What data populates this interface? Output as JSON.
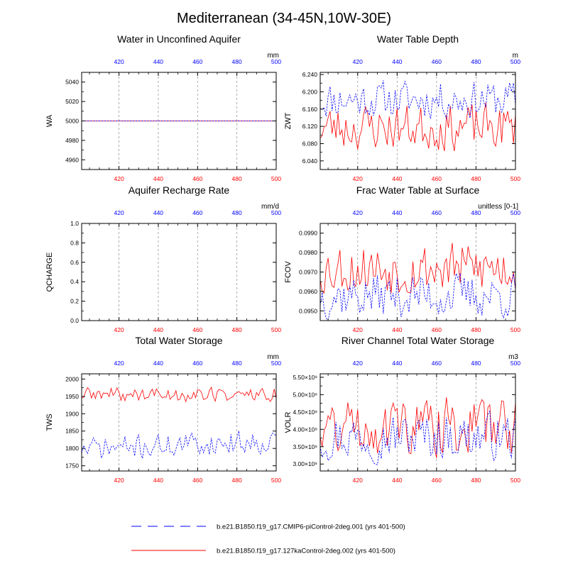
{
  "title": "Mediterranean (34-45N,10W-30E)",
  "colors": {
    "case1": "#0000ff",
    "case2": "#ff0000",
    "grid": "#999999"
  },
  "legend": [
    {
      "label": "b.e21.B1850.f19_g17.CMIP6-piControl-2deg.001 (yrs 401-500)",
      "color": "#0000ff",
      "style": "dashed"
    },
    {
      "label": "b.e21.B1850.f19_g17.127kaControl-2deg.002 (yrs 401-500)",
      "color": "#ff0000",
      "style": "solid"
    }
  ],
  "chart_data": [
    {
      "type": "line",
      "title": "Water in Unconfined Aquifer",
      "ylabel": "WA",
      "units": "mm",
      "xlim": [
        401,
        500
      ],
      "ylim": [
        4950,
        5050
      ],
      "xticks": [
        420,
        440,
        460,
        480,
        500
      ],
      "yticks": [
        4960,
        4980,
        5000,
        5020,
        5040
      ],
      "ytick_labels": [
        "4960",
        "4980",
        "5000",
        "5020",
        "5040"
      ],
      "series": [
        {
          "name": "case1",
          "gen": {
            "kind": "const",
            "base": 5000
          }
        },
        {
          "name": "case2",
          "gen": {
            "kind": "const",
            "base": 5000
          }
        }
      ]
    },
    {
      "type": "line",
      "title": "Water Table Depth",
      "ylabel": "ZWT",
      "units": "m",
      "xlim": [
        401,
        500
      ],
      "ylim": [
        6.02,
        6.245
      ],
      "xticks": [
        420,
        440,
        460,
        480,
        500
      ],
      "yticks": [
        6.04,
        6.08,
        6.12,
        6.16,
        6.2,
        6.24
      ],
      "ytick_labels": [
        "6.040",
        "6.080",
        "6.120",
        "6.160",
        "6.200",
        "6.240"
      ],
      "series": [
        {
          "name": "case1",
          "gen": {
            "kind": "noise",
            "base": 6.182,
            "amp": 0.045,
            "seed": 11,
            "min": 6.09,
            "max": 6.235
          }
        },
        {
          "name": "case2",
          "gen": {
            "kind": "noise",
            "base": 6.118,
            "amp": 0.055,
            "seed": 23,
            "min": 6.028,
            "max": 6.215
          }
        }
      ]
    },
    {
      "type": "line",
      "title": "Aquifer Recharge Rate",
      "ylabel": "QCHARGE",
      "units": "mm/d",
      "xlim": [
        401,
        500
      ],
      "ylim": [
        0,
        1
      ],
      "xticks": [
        420,
        440,
        460,
        480,
        500
      ],
      "yticks": [
        0,
        0.2,
        0.4,
        0.6,
        0.8,
        1.0
      ],
      "ytick_labels": [
        "0.0",
        "0.2",
        "0.4",
        "0.6",
        "0.8",
        "1.0"
      ],
      "series": [
        {
          "name": "case1",
          "gen": {
            "kind": "const",
            "base": 0
          }
        },
        {
          "name": "case2",
          "gen": {
            "kind": "const",
            "base": 0
          }
        }
      ]
    },
    {
      "type": "line",
      "title": "Frac Water Table at Surface",
      "ylabel": "FCOV",
      "units": "unitless [0-1]",
      "xlim": [
        401,
        500
      ],
      "ylim": [
        0.0945,
        0.0995
      ],
      "xticks": [
        420,
        440,
        460,
        480,
        500
      ],
      "yticks": [
        0.095,
        0.096,
        0.097,
        0.098,
        0.099
      ],
      "ytick_labels": [
        "0.0950",
        "0.0960",
        "0.0970",
        "0.0980",
        "0.0990"
      ],
      "series": [
        {
          "name": "case1",
          "gen": {
            "kind": "noise",
            "base": 0.0958,
            "amp": 0.0012,
            "seed": 37,
            "min": 0.0945,
            "max": 0.0982
          }
        },
        {
          "name": "case2",
          "gen": {
            "kind": "noise",
            "base": 0.0972,
            "amp": 0.0014,
            "seed": 53,
            "min": 0.0954,
            "max": 0.0994
          }
        }
      ]
    },
    {
      "type": "line",
      "title": "Total Water Storage",
      "ylabel": "TWS",
      "units": "mm",
      "xlim": [
        401,
        500
      ],
      "ylim": [
        1735,
        2015
      ],
      "xticks": [
        420,
        440,
        460,
        480,
        500
      ],
      "yticks": [
        1750,
        1800,
        1850,
        1900,
        1950,
        2000
      ],
      "ytick_labels": [
        "1750",
        "1800",
        "1850",
        "1900",
        "1950",
        "2000"
      ],
      "series": [
        {
          "name": "case1",
          "gen": {
            "kind": "noise",
            "base": 1810,
            "amp": 35,
            "seed": 71,
            "min": 1742,
            "max": 1878,
            "trend": 25
          }
        },
        {
          "name": "case2",
          "gen": {
            "kind": "noise",
            "base": 1955,
            "amp": 22,
            "seed": 89,
            "min": 1905,
            "max": 1998
          }
        }
      ]
    },
    {
      "type": "line",
      "title": "River Channel Total Water Storage",
      "ylabel": "VOLR",
      "units": "m3",
      "xlim": [
        401,
        500
      ],
      "ylim": [
        280000000.0,
        560000000.0
      ],
      "xticks": [
        420,
        440,
        460,
        480,
        500
      ],
      "yticks": [
        300000000.0,
        350000000.0,
        400000000.0,
        450000000.0,
        500000000.0,
        550000000.0
      ],
      "ytick_labels": [
        "3.00×10⁸",
        "3.50×10⁸",
        "4.00×10⁸",
        "4.50×10⁸",
        "5.00×10⁸",
        "5.50×10⁸"
      ],
      "series": [
        {
          "name": "case1",
          "gen": {
            "kind": "noise",
            "base": 380000000.0,
            "amp": 70000000.0,
            "seed": 97,
            "min": 285000000.0,
            "max": 500000000.0
          }
        },
        {
          "name": "case2",
          "gen": {
            "kind": "noise",
            "base": 410000000.0,
            "amp": 85000000.0,
            "seed": 131,
            "min": 295000000.0,
            "max": 555000000.0
          }
        }
      ]
    }
  ]
}
